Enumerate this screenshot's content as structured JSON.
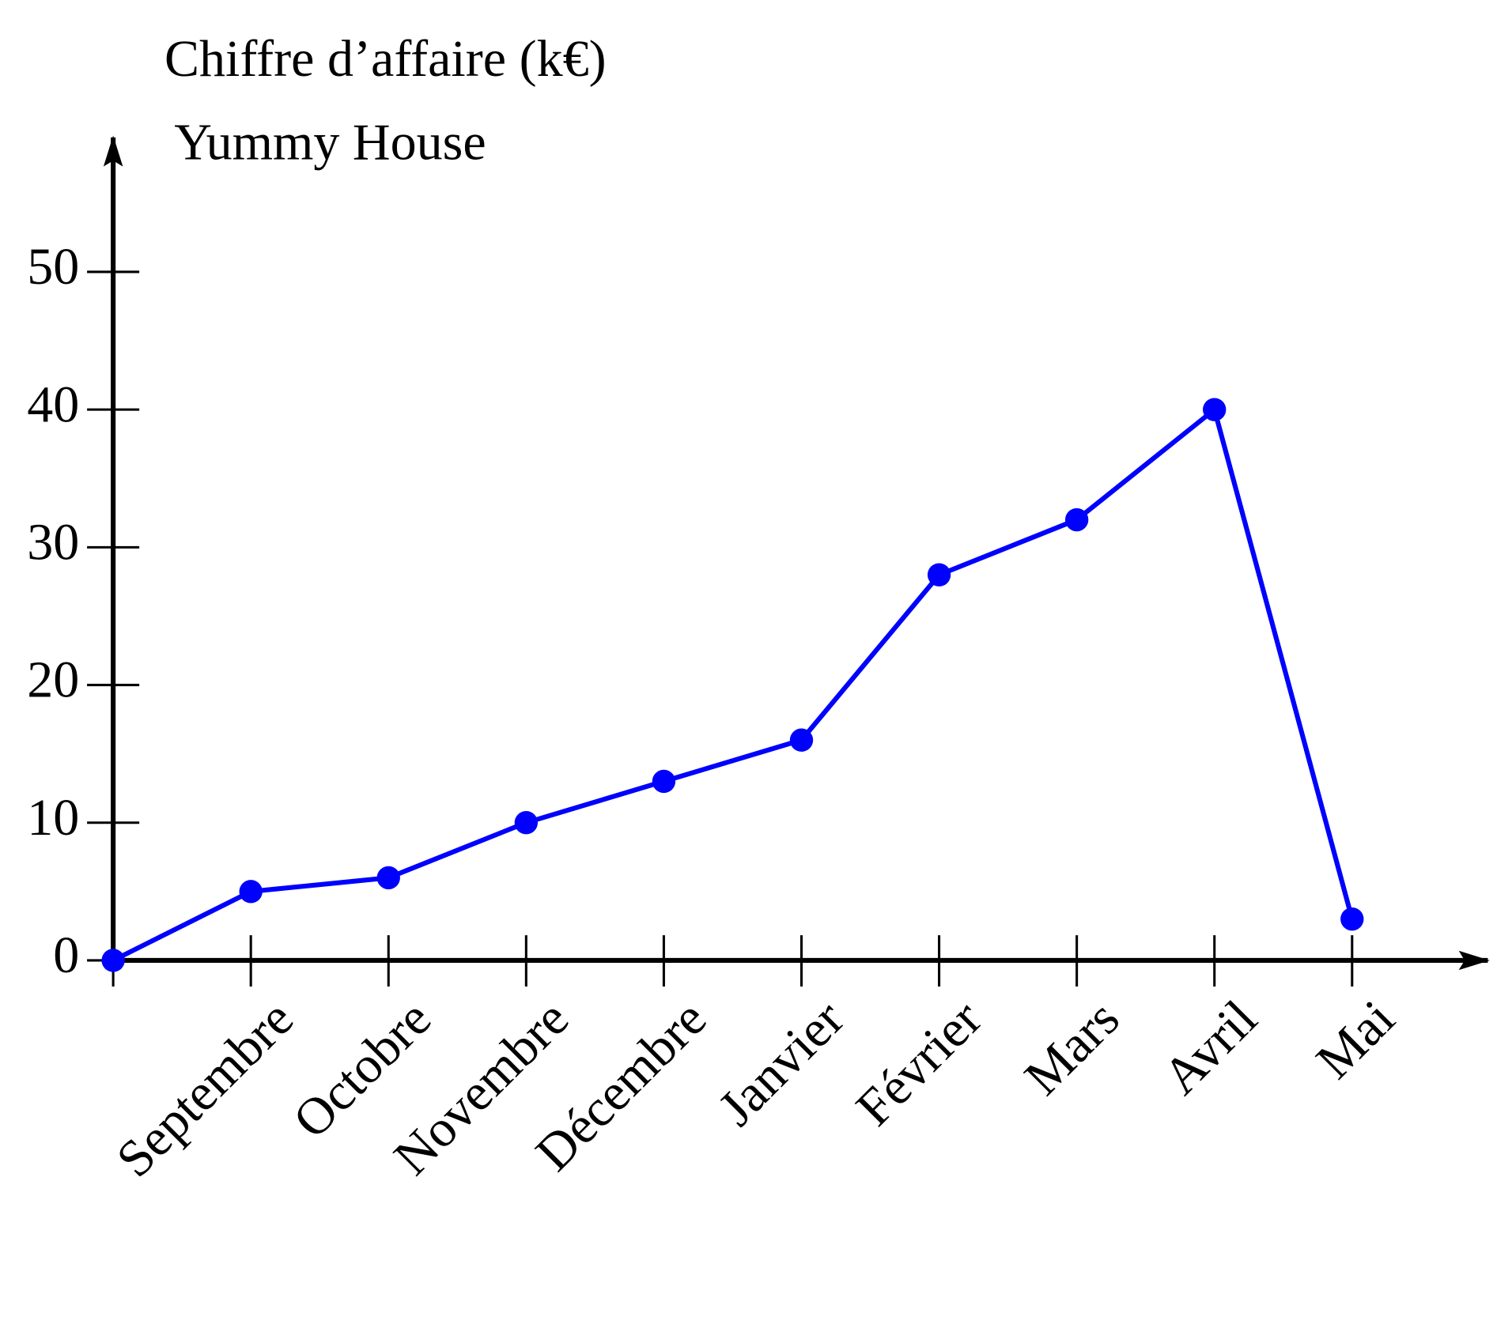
{
  "chart_data": {
    "type": "line",
    "title": "Chiffre d’affaire (k€)",
    "subtitle": "Yummy House",
    "categories": [
      null,
      "Septembre",
      "Octobre",
      "Novembre",
      "Décembre",
      "Janvier",
      "Février",
      "Mars",
      "Avril",
      "Mai"
    ],
    "series": [
      {
        "name": "Chiffre d’affaire",
        "color": "#0000ff",
        "values": [
          0,
          5,
          6,
          10,
          13,
          16,
          28,
          32,
          40,
          3
        ]
      }
    ],
    "ylim": [
      0,
      60
    ],
    "yticks": [
      0,
      10,
      20,
      30,
      40,
      50
    ],
    "grid": false
  }
}
